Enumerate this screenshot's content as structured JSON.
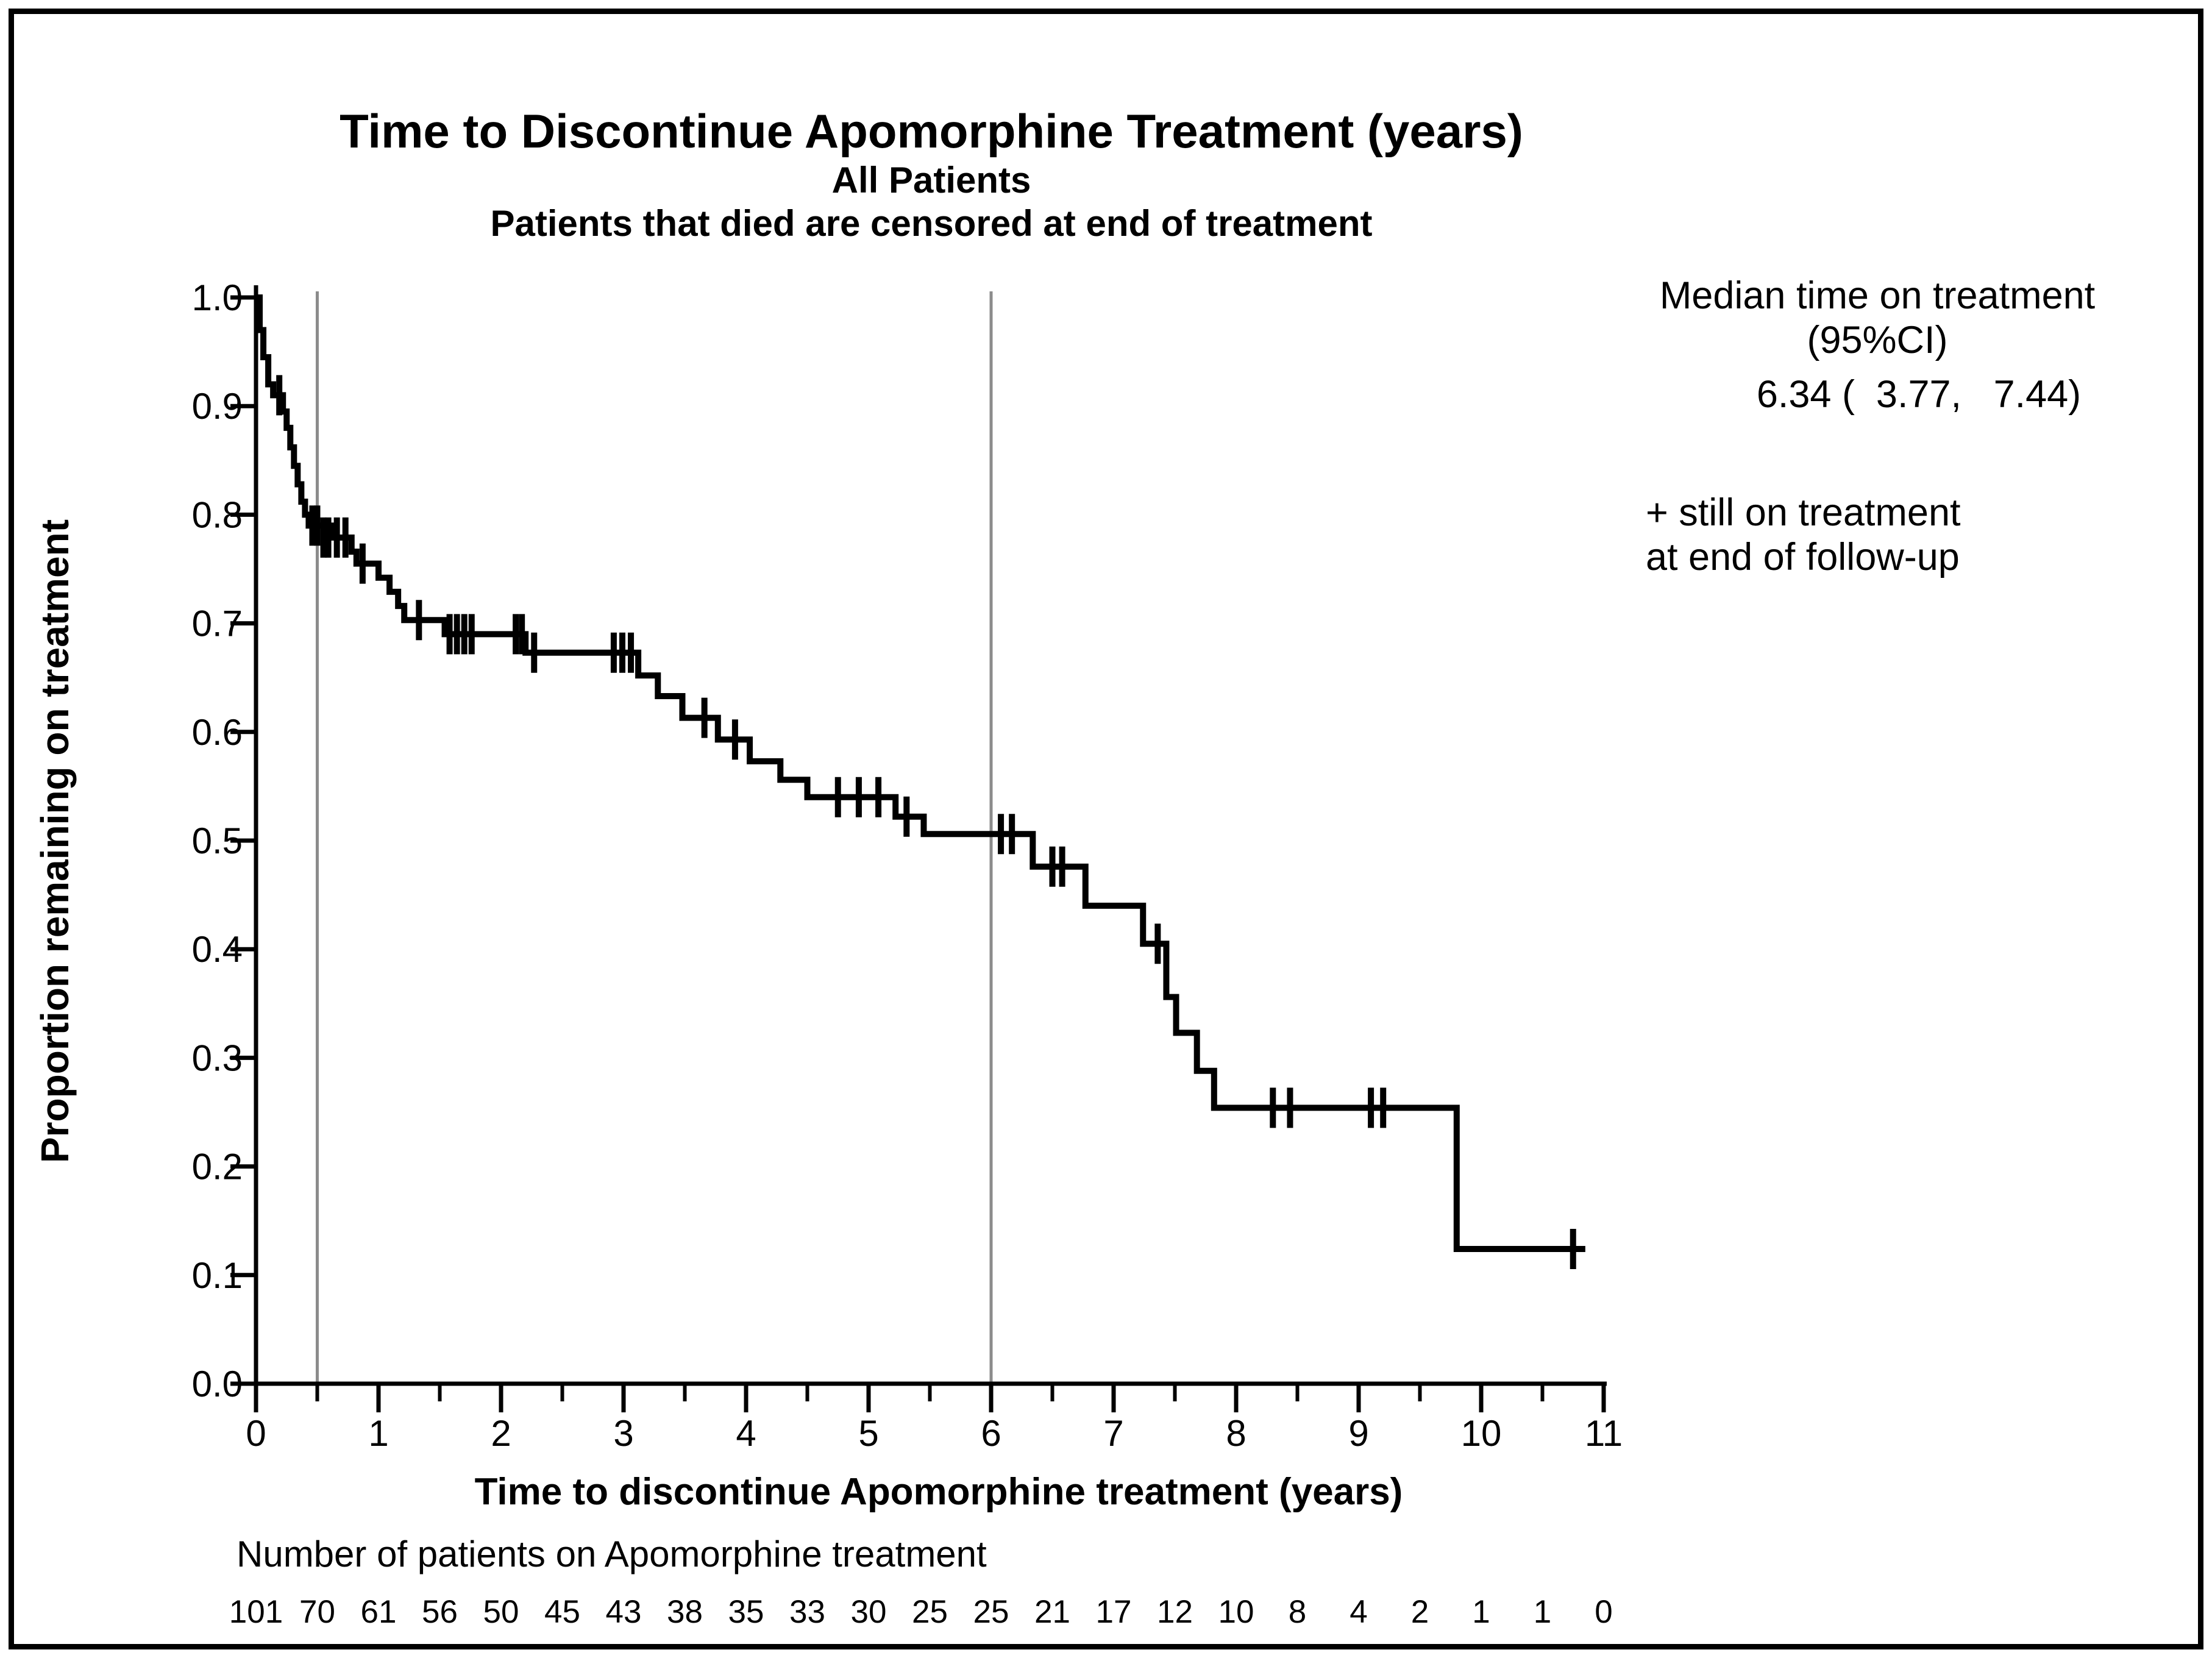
{
  "page": {
    "background": "#ffffff",
    "border_color": "#000000"
  },
  "chart_data": {
    "type": "line",
    "subtype": "kaplan-meier-step-function",
    "title": "Time to Discontinue Apomorphine Treatment (years)",
    "subtitle1": "All Patients",
    "subtitle2": "Patients that died are censored at end of treatment",
    "xlabel": "Time to discontinue Apomorphine treatment (years)",
    "ylabel": "Proportion remaining on treatment",
    "grid": "off",
    "legend_position": "none",
    "xlim": [
      0,
      11
    ],
    "ylim": [
      0.0,
      1.0
    ],
    "x_ticks": [
      0,
      1,
      2,
      3,
      4,
      5,
      6,
      7,
      8,
      9,
      10,
      11
    ],
    "x_minor_ticks": [
      0.5,
      1.5,
      2.5,
      3.5,
      4.5,
      5.5,
      6.5,
      7.5,
      8.5,
      9.5,
      10.5
    ],
    "y_ticks": [
      1.0,
      0.9,
      0.8,
      0.7,
      0.6,
      0.5,
      0.4,
      0.3,
      0.2,
      0.1,
      0.0
    ],
    "y_tick_labels": [
      "1.0",
      "0.9",
      "0.8",
      "0.7",
      "0.6",
      "0.5",
      "0.4",
      "0.3",
      "0.2",
      "0.1",
      "0.0"
    ],
    "reference_lines_x": [
      0.5,
      6.0
    ],
    "reference_line_color": "#8c8c8c",
    "curve_color": "#000000",
    "axis_color": "#000000",
    "annotation": {
      "line1": "Median time on treatment",
      "line2": "(95%CI)",
      "line3": "6.34 (  3.77,   7.44)",
      "note_line1": "+ still on treatment",
      "note_line2": "at end of follow-up"
    },
    "steps": [
      [
        0.0,
        1.0
      ],
      [
        0.03,
        0.97
      ],
      [
        0.06,
        0.945
      ],
      [
        0.1,
        0.92
      ],
      [
        0.14,
        0.91
      ],
      [
        0.22,
        0.895
      ],
      [
        0.25,
        0.88
      ],
      [
        0.28,
        0.862
      ],
      [
        0.31,
        0.845
      ],
      [
        0.34,
        0.828
      ],
      [
        0.37,
        0.812
      ],
      [
        0.4,
        0.8
      ],
      [
        0.43,
        0.79
      ],
      [
        0.62,
        0.779
      ],
      [
        0.78,
        0.766
      ],
      [
        0.82,
        0.755
      ],
      [
        1.0,
        0.742
      ],
      [
        1.09,
        0.729
      ],
      [
        1.16,
        0.716
      ],
      [
        1.21,
        0.703
      ],
      [
        1.54,
        0.69
      ],
      [
        2.2,
        0.673
      ],
      [
        3.12,
        0.652
      ],
      [
        3.28,
        0.633
      ],
      [
        3.48,
        0.613
      ],
      [
        3.77,
        0.593
      ],
      [
        4.03,
        0.573
      ],
      [
        4.28,
        0.556
      ],
      [
        4.5,
        0.54
      ],
      [
        5.22,
        0.522
      ],
      [
        5.45,
        0.506
      ],
      [
        6.34,
        0.476
      ],
      [
        6.77,
        0.44
      ],
      [
        7.24,
        0.405
      ],
      [
        7.43,
        0.356
      ],
      [
        7.51,
        0.323
      ],
      [
        7.68,
        0.288
      ],
      [
        7.82,
        0.254
      ],
      [
        9.8,
        0.124
      ]
    ],
    "end_time": 10.85,
    "censors": [
      [
        0.19,
        0.91
      ],
      [
        0.46,
        0.79
      ],
      [
        0.5,
        0.79
      ],
      [
        0.55,
        0.779
      ],
      [
        0.59,
        0.779
      ],
      [
        0.66,
        0.779
      ],
      [
        0.73,
        0.779
      ],
      [
        0.87,
        0.755
      ],
      [
        1.33,
        0.703
      ],
      [
        1.58,
        0.69
      ],
      [
        1.64,
        0.69
      ],
      [
        1.7,
        0.69
      ],
      [
        1.76,
        0.69
      ],
      [
        2.12,
        0.69
      ],
      [
        2.17,
        0.69
      ],
      [
        2.27,
        0.673
      ],
      [
        2.92,
        0.673
      ],
      [
        2.99,
        0.673
      ],
      [
        3.06,
        0.673
      ],
      [
        3.66,
        0.613
      ],
      [
        3.91,
        0.593
      ],
      [
        4.75,
        0.54
      ],
      [
        4.92,
        0.54
      ],
      [
        5.08,
        0.54
      ],
      [
        5.31,
        0.522
      ],
      [
        6.08,
        0.506
      ],
      [
        6.17,
        0.506
      ],
      [
        6.5,
        0.476
      ],
      [
        6.58,
        0.476
      ],
      [
        7.36,
        0.405
      ],
      [
        8.3,
        0.254
      ],
      [
        8.44,
        0.254
      ],
      [
        9.1,
        0.254
      ],
      [
        9.2,
        0.254
      ],
      [
        10.75,
        0.124
      ]
    ],
    "at_risk": {
      "label": "Number of patients on Apomorphine treatment",
      "times": [
        0,
        0.5,
        1,
        1.5,
        2,
        2.5,
        3,
        3.5,
        4,
        4.5,
        5,
        5.5,
        6,
        6.5,
        7,
        7.5,
        8,
        8.5,
        9,
        9.5,
        10,
        10.5,
        11
      ],
      "counts": [
        "101",
        "70",
        "61",
        "56",
        "50",
        "45",
        "43",
        "38",
        "35",
        "33",
        "30",
        "25",
        "25",
        "21",
        "17",
        "12",
        "10",
        "8",
        "4",
        "2",
        "1",
        "1",
        "0"
      ]
    }
  }
}
